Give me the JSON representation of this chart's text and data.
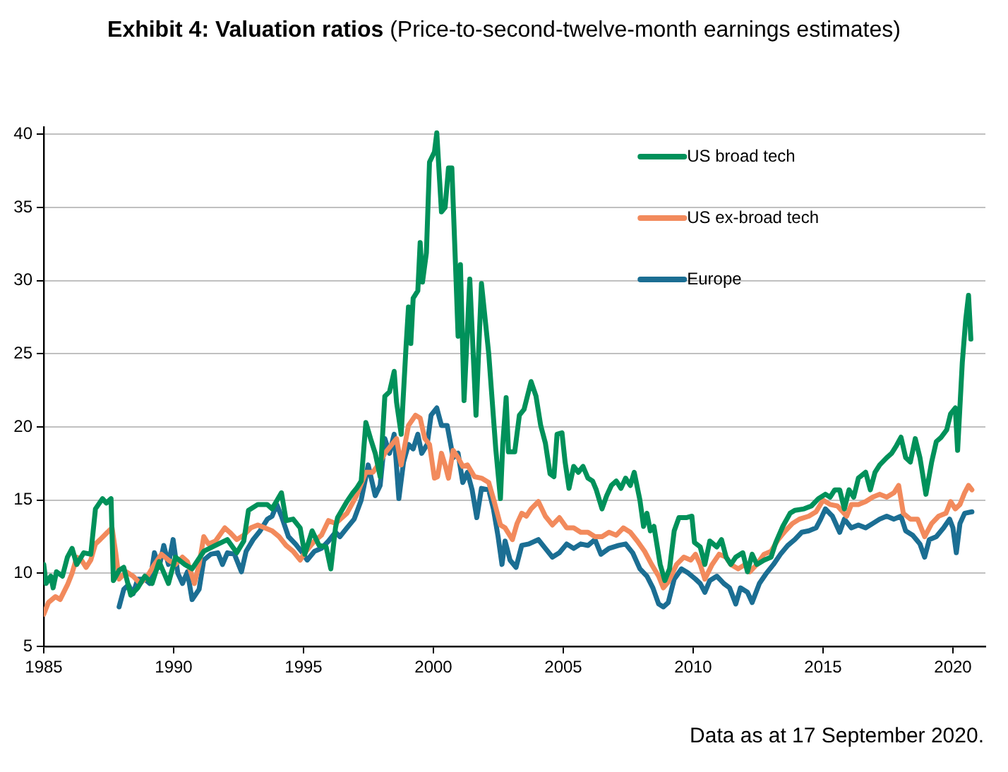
{
  "chart_data": {
    "type": "line",
    "title": "Exhibit 4: Valuation ratios",
    "subtitle": "(Price-to-second-twelve-month earnings estimates)",
    "annotations": [
      "Data as at 17 September 2020."
    ],
    "xlim": [
      1985,
      2021.25
    ],
    "xticks": [
      1985,
      1990,
      1995,
      2000,
      2005,
      2010,
      2015,
      2020
    ],
    "ylim": [
      5,
      40.5
    ],
    "yticks": [
      5,
      10,
      15,
      20,
      25,
      30,
      35,
      40
    ],
    "grid": "y",
    "legend": "top right",
    "series": [
      {
        "name": "US broad tech",
        "color": "#00915a",
        "x": [
          1985.0,
          1985.09,
          1985.27,
          1985.36,
          1985.49,
          1985.72,
          1985.91,
          1986.09,
          1986.27,
          1986.54,
          1986.81,
          1986.99,
          1987.26,
          1987.41,
          1987.59,
          1987.68,
          1987.9,
          1988.08,
          1988.35,
          1988.62,
          1988.89,
          1989.17,
          1989.44,
          1989.8,
          1990.07,
          1990.43,
          1990.71,
          1991.16,
          1991.61,
          1992.07,
          1992.43,
          1992.7,
          1992.88,
          1993.24,
          1993.6,
          1993.79,
          1994.15,
          1994.33,
          1994.6,
          1994.87,
          1995.05,
          1995.33,
          1995.6,
          1995.87,
          1996.05,
          1996.23,
          1996.31,
          1996.67,
          1996.9,
          1997.04,
          1997.22,
          1997.4,
          1997.58,
          1997.76,
          1997.95,
          1998.13,
          1998.31,
          1998.49,
          1998.58,
          1998.76,
          1998.95,
          1999.04,
          1999.13,
          1999.22,
          1999.4,
          1999.49,
          1999.58,
          1999.73,
          1999.85,
          2000.04,
          2000.13,
          2000.31,
          2000.45,
          2000.58,
          2000.71,
          2000.85,
          2000.95,
          2001.04,
          2001.18,
          2001.4,
          2001.64,
          2001.85,
          2002.13,
          2002.4,
          2002.58,
          2002.67,
          2002.8,
          2002.89,
          2003.13,
          2003.31,
          2003.49,
          2003.76,
          2003.95,
          2004.13,
          2004.31,
          2004.49,
          2004.64,
          2004.76,
          2004.95,
          2005.07,
          2005.22,
          2005.4,
          2005.58,
          2005.76,
          2005.95,
          2006.13,
          2006.27,
          2006.49,
          2006.67,
          2006.85,
          2007.04,
          2007.22,
          2007.4,
          2007.58,
          2007.73,
          2007.95,
          2008.09,
          2008.22,
          2008.35,
          2008.49,
          2008.73,
          2008.91,
          2009.09,
          2009.27,
          2009.45,
          2009.73,
          2009.95,
          2010.05,
          2010.27,
          2010.45,
          2010.64,
          2010.91,
          2011.09,
          2011.27,
          2011.45,
          2011.64,
          2011.91,
          2012.09,
          2012.27,
          2012.45,
          2012.73,
          2013.0,
          2013.18,
          2013.45,
          2013.73,
          2013.91,
          2014.27,
          2014.55,
          2014.82,
          2015.09,
          2015.27,
          2015.45,
          2015.64,
          2015.82,
          2016.0,
          2016.18,
          2016.36,
          2016.64,
          2016.82,
          2017.0,
          2017.18,
          2017.45,
          2017.64,
          2017.82,
          2018.0,
          2018.18,
          2018.36,
          2018.55,
          2018.73,
          2018.96,
          2019.18,
          2019.36,
          2019.55,
          2019.76,
          2019.91,
          2020.09,
          2020.18,
          2020.36,
          2020.49,
          2020.6,
          2020.69
        ],
        "values": [
          10.6,
          9.3,
          9.8,
          9.0,
          10.1,
          9.8,
          11.1,
          11.7,
          10.6,
          11.4,
          11.3,
          14.4,
          15.1,
          14.8,
          15.1,
          9.5,
          10.2,
          10.4,
          8.5,
          9.0,
          9.8,
          9.3,
          10.8,
          9.3,
          11.1,
          10.6,
          10.3,
          11.5,
          11.9,
          12.3,
          11.4,
          12.2,
          14.3,
          14.7,
          14.7,
          14.4,
          15.5,
          13.6,
          13.7,
          13.1,
          11.3,
          12.9,
          11.9,
          11.8,
          10.3,
          13.1,
          13.8,
          14.9,
          15.5,
          15.8,
          16.3,
          20.3,
          19.2,
          18.2,
          16.6,
          22.1,
          22.4,
          23.8,
          21.7,
          19.5,
          25.6,
          28.2,
          25.7,
          28.8,
          29.3,
          32.6,
          29.9,
          31.9,
          38.1,
          38.8,
          40.1,
          34.7,
          35.0,
          37.7,
          37.7,
          31.1,
          26.2,
          31.1,
          21.8,
          30.1,
          20.8,
          29.8,
          25.0,
          18.5,
          15.1,
          18.8,
          22.0,
          18.3,
          18.3,
          20.8,
          21.2,
          23.1,
          22.1,
          20.1,
          18.9,
          16.8,
          16.6,
          19.5,
          19.6,
          17.6,
          15.8,
          17.3,
          16.9,
          17.3,
          16.5,
          16.3,
          15.7,
          14.4,
          15.3,
          16.0,
          16.3,
          15.8,
          16.5,
          16.0,
          16.9,
          15.0,
          13.2,
          14.1,
          12.9,
          13.2,
          10.6,
          9.5,
          10.3,
          12.9,
          13.8,
          13.8,
          13.9,
          12.1,
          11.8,
          10.6,
          12.2,
          11.8,
          12.3,
          11.1,
          10.6,
          11.1,
          11.4,
          10.1,
          11.3,
          10.6,
          10.9,
          11.1,
          12.1,
          13.2,
          14.1,
          14.3,
          14.4,
          14.6,
          15.1,
          15.4,
          15.2,
          15.7,
          15.7,
          14.4,
          15.7,
          15.2,
          16.5,
          16.9,
          15.7,
          16.9,
          17.4,
          17.9,
          18.2,
          18.7,
          19.3,
          17.9,
          17.6,
          19.2,
          17.9,
          15.4,
          17.6,
          19.0,
          19.3,
          19.8,
          20.9,
          21.3,
          18.4,
          24.4,
          27.3,
          29.0,
          26.0
        ]
      },
      {
        "name": "US ex-broad tech",
        "color": "#f28a5c",
        "x": [
          1985.0,
          1985.18,
          1985.45,
          1985.63,
          1985.91,
          1986.09,
          1986.27,
          1986.45,
          1986.63,
          1986.81,
          1986.99,
          1987.17,
          1987.45,
          1987.63,
          1987.77,
          1987.9,
          1988.17,
          1988.44,
          1988.71,
          1988.99,
          1989.26,
          1989.53,
          1989.8,
          1990.07,
          1990.34,
          1990.53,
          1990.8,
          1990.98,
          1991.16,
          1991.34,
          1991.61,
          1991.97,
          1992.16,
          1992.43,
          1992.7,
          1992.97,
          1993.24,
          1993.51,
          1993.79,
          1994.06,
          1994.33,
          1994.6,
          1994.87,
          1995.05,
          1995.42,
          1995.69,
          1995.96,
          1996.23,
          1996.67,
          1997.04,
          1997.4,
          1997.67,
          1997.95,
          1998.13,
          1998.4,
          1998.58,
          1998.76,
          1999.04,
          1999.31,
          1999.49,
          1999.67,
          1999.85,
          2000.04,
          2000.16,
          2000.31,
          2000.45,
          2000.58,
          2000.76,
          2000.95,
          2001.13,
          2001.31,
          2001.58,
          2001.85,
          2002.13,
          2002.31,
          2002.58,
          2002.76,
          2003.04,
          2003.22,
          2003.4,
          2003.58,
          2003.76,
          2004.04,
          2004.31,
          2004.58,
          2004.85,
          2005.13,
          2005.4,
          2005.67,
          2005.95,
          2006.22,
          2006.49,
          2006.76,
          2007.04,
          2007.31,
          2007.58,
          2007.85,
          2008.13,
          2008.4,
          2008.67,
          2008.85,
          2009.04,
          2009.36,
          2009.64,
          2009.91,
          2010.09,
          2010.27,
          2010.45,
          2010.73,
          2011.0,
          2011.27,
          2011.45,
          2011.73,
          2012.0,
          2012.18,
          2012.45,
          2012.73,
          2013.0,
          2013.27,
          2013.55,
          2013.82,
          2014.09,
          2014.45,
          2014.73,
          2015.0,
          2015.27,
          2015.55,
          2015.91,
          2016.09,
          2016.36,
          2016.64,
          2016.91,
          2017.18,
          2017.45,
          2017.73,
          2017.91,
          2018.09,
          2018.36,
          2018.64,
          2018.91,
          2019.18,
          2019.45,
          2019.73,
          2019.91,
          2020.09,
          2020.27,
          2020.45,
          2020.6,
          2020.73
        ],
        "values": [
          7.2,
          8.0,
          8.4,
          8.2,
          9.2,
          10.0,
          11.1,
          10.9,
          10.4,
          10.9,
          12.0,
          12.3,
          12.8,
          13.1,
          11.4,
          9.6,
          10.1,
          9.8,
          9.3,
          9.8,
          10.6,
          11.3,
          10.9,
          10.6,
          11.1,
          10.8,
          9.3,
          10.6,
          12.5,
          12.0,
          12.2,
          13.1,
          12.8,
          12.3,
          12.6,
          13.1,
          13.3,
          13.1,
          12.9,
          12.5,
          11.9,
          11.5,
          10.9,
          11.4,
          12.2,
          12.6,
          13.6,
          13.4,
          14.1,
          15.3,
          16.9,
          16.9,
          17.6,
          18.2,
          18.8,
          19.2,
          17.4,
          20.1,
          20.8,
          20.6,
          19.2,
          18.8,
          16.5,
          16.6,
          18.2,
          17.4,
          16.5,
          18.4,
          17.9,
          17.3,
          17.4,
          16.6,
          16.5,
          16.2,
          15.1,
          13.3,
          13.1,
          12.3,
          13.4,
          14.1,
          13.9,
          14.4,
          14.9,
          13.9,
          13.3,
          13.8,
          13.1,
          13.1,
          12.8,
          12.8,
          12.5,
          12.5,
          12.8,
          12.6,
          13.1,
          12.8,
          12.2,
          11.5,
          10.6,
          9.8,
          9.0,
          9.4,
          10.6,
          11.1,
          10.9,
          11.3,
          10.6,
          9.6,
          10.6,
          11.3,
          11.1,
          10.6,
          10.3,
          10.6,
          10.1,
          10.6,
          11.3,
          11.5,
          12.3,
          12.9,
          13.4,
          13.7,
          13.9,
          14.2,
          15.0,
          14.7,
          14.6,
          13.9,
          14.7,
          14.7,
          14.9,
          15.2,
          15.4,
          15.2,
          15.5,
          16.0,
          14.1,
          13.7,
          13.7,
          12.5,
          13.4,
          13.9,
          14.1,
          14.9,
          14.4,
          14.7,
          15.5,
          16.0,
          15.7
        ]
      },
      {
        "name": "Europe",
        "color": "#1b6e93",
        "x": [
          1987.9,
          1988.08,
          1988.26,
          1988.44,
          1988.62,
          1988.89,
          1989.08,
          1989.26,
          1989.44,
          1989.62,
          1989.8,
          1989.98,
          1990.16,
          1990.34,
          1990.53,
          1990.71,
          1990.98,
          1991.16,
          1991.43,
          1991.7,
          1991.88,
          1992.07,
          1992.34,
          1992.61,
          1992.79,
          1993.06,
          1993.33,
          1993.61,
          1993.79,
          1993.97,
          1994.15,
          1994.42,
          1994.69,
          1994.96,
          1995.14,
          1995.42,
          1995.69,
          1995.96,
          1996.23,
          1996.4,
          1996.67,
          1996.95,
          1997.22,
          1997.49,
          1997.76,
          1997.95,
          1998.13,
          1998.31,
          1998.49,
          1998.67,
          1998.85,
          1999.04,
          1999.22,
          1999.4,
          1999.55,
          1999.76,
          1999.91,
          2000.13,
          2000.31,
          2000.53,
          2000.76,
          2000.95,
          2001.13,
          2001.31,
          2001.49,
          2001.67,
          2001.85,
          2002.13,
          2002.31,
          2002.49,
          2002.64,
          2002.76,
          2002.95,
          2003.18,
          2003.4,
          2003.67,
          2004.04,
          2004.31,
          2004.58,
          2004.85,
          2005.13,
          2005.4,
          2005.67,
          2005.95,
          2006.22,
          2006.45,
          2006.76,
          2007.13,
          2007.4,
          2007.67,
          2007.95,
          2008.22,
          2008.45,
          2008.67,
          2008.85,
          2009.04,
          2009.27,
          2009.55,
          2009.82,
          2010.09,
          2010.27,
          2010.45,
          2010.64,
          2010.91,
          2011.18,
          2011.4,
          2011.64,
          2011.82,
          2012.09,
          2012.27,
          2012.55,
          2012.82,
          2013.09,
          2013.36,
          2013.64,
          2013.91,
          2014.18,
          2014.45,
          2014.73,
          2014.91,
          2015.09,
          2015.36,
          2015.64,
          2015.82,
          2016.09,
          2016.36,
          2016.64,
          2016.91,
          2017.18,
          2017.45,
          2017.73,
          2018.0,
          2018.18,
          2018.45,
          2018.73,
          2018.91,
          2019.09,
          2019.36,
          2019.64,
          2019.87,
          2020.0,
          2020.13,
          2020.27,
          2020.45,
          2020.73
        ],
        "values": [
          7.7,
          8.9,
          9.2,
          8.6,
          9.6,
          9.6,
          9.3,
          11.4,
          10.4,
          11.9,
          10.6,
          12.3,
          10.0,
          9.3,
          10.1,
          8.2,
          8.9,
          10.9,
          11.3,
          11.4,
          10.6,
          11.4,
          11.3,
          10.1,
          11.5,
          12.3,
          12.9,
          13.7,
          13.9,
          14.7,
          13.9,
          12.5,
          12.0,
          11.4,
          10.9,
          11.5,
          11.7,
          12.2,
          12.8,
          12.5,
          13.1,
          13.7,
          15.0,
          17.4,
          15.3,
          16.0,
          19.2,
          18.2,
          19.5,
          15.1,
          17.6,
          18.8,
          18.5,
          19.5,
          18.2,
          18.8,
          20.8,
          21.3,
          20.1,
          20.1,
          17.9,
          18.2,
          16.2,
          16.9,
          15.7,
          13.8,
          15.8,
          15.7,
          14.4,
          12.5,
          10.6,
          12.2,
          10.9,
          10.4,
          11.9,
          12.0,
          12.3,
          11.7,
          11.1,
          11.4,
          12.0,
          11.7,
          12.0,
          11.9,
          12.3,
          11.3,
          11.7,
          11.9,
          12.0,
          11.4,
          10.3,
          9.8,
          9.0,
          7.9,
          7.7,
          8.0,
          9.6,
          10.3,
          10.0,
          9.6,
          9.3,
          8.7,
          9.5,
          9.8,
          9.3,
          9.0,
          7.9,
          9.0,
          8.7,
          8.0,
          9.3,
          10.0,
          10.6,
          11.3,
          11.9,
          12.3,
          12.8,
          12.9,
          13.1,
          13.7,
          14.4,
          13.9,
          12.8,
          13.7,
          13.1,
          13.3,
          13.1,
          13.4,
          13.7,
          13.9,
          13.7,
          13.9,
          12.9,
          12.6,
          12.0,
          11.1,
          12.3,
          12.5,
          13.1,
          13.7,
          13.1,
          11.4,
          13.4,
          14.1,
          14.2
        ]
      }
    ]
  }
}
